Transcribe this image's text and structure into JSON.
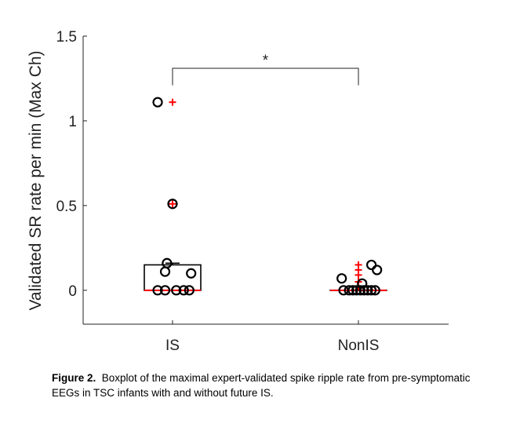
{
  "chart_data": {
    "type": "box",
    "title": "",
    "xlabel": "",
    "ylabel": "Validated SR rate per min (Max Ch)",
    "ylim": [
      -0.2,
      1.5
    ],
    "yticks": [
      {
        "value": 0,
        "label": "0"
      },
      {
        "value": 0.5,
        "label": "0.5"
      },
      {
        "value": 1,
        "label": "1"
      },
      {
        "value": 1.5,
        "label": "1.5"
      }
    ],
    "categories": [
      "IS",
      "NonIS"
    ],
    "groups": [
      {
        "name": "IS",
        "box": {
          "q1": 0,
          "median": 0,
          "q3": 0.15,
          "whisker_low": 0,
          "whisker_high": 0.16
        },
        "outliers": [
          0.51,
          1.11
        ],
        "points": [
          {
            "dx": -0.08,
            "y": 1.11
          },
          {
            "dx": 0.0,
            "y": 0.51
          },
          {
            "dx": -0.03,
            "y": 0.16
          },
          {
            "dx": -0.04,
            "y": 0.11
          },
          {
            "dx": 0.1,
            "y": 0.1
          },
          {
            "dx": -0.08,
            "y": 0.0
          },
          {
            "dx": -0.04,
            "y": 0.0
          },
          {
            "dx": 0.02,
            "y": 0.0
          },
          {
            "dx": 0.06,
            "y": 0.0
          },
          {
            "dx": 0.09,
            "y": 0.0
          }
        ]
      },
      {
        "name": "NonIS",
        "box": {
          "q1": 0,
          "median": 0,
          "q3": 0,
          "whisker_low": 0,
          "whisker_high": 0
        },
        "outliers": [
          0.02,
          0.05,
          0.09,
          0.12,
          0.15
        ],
        "points": [
          {
            "dx": 0.07,
            "y": 0.15
          },
          {
            "dx": 0.1,
            "y": 0.12
          },
          {
            "dx": -0.09,
            "y": 0.07
          },
          {
            "dx": 0.02,
            "y": 0.04
          },
          {
            "dx": -0.08,
            "y": 0.0
          },
          {
            "dx": -0.05,
            "y": 0.0
          },
          {
            "dx": -0.03,
            "y": 0.0
          },
          {
            "dx": -0.01,
            "y": 0.0
          },
          {
            "dx": 0.01,
            "y": 0.0
          },
          {
            "dx": 0.03,
            "y": 0.0
          },
          {
            "dx": 0.05,
            "y": 0.0
          },
          {
            "dx": 0.07,
            "y": 0.0
          },
          {
            "dx": 0.09,
            "y": 0.0
          }
        ]
      }
    ],
    "significance": {
      "from": "IS",
      "to": "NonIS",
      "y": 1.31,
      "drop": 0.1,
      "label": "*"
    },
    "colors": {
      "box": "#000000",
      "median": "#ff0000",
      "outlier": "#ff0000",
      "points": "#000000"
    }
  },
  "caption": {
    "label": "Figure 2.",
    "text": "Boxplot of the maximal expert-validated spike ripple rate from pre-symptomatic EEGs in TSC infants with and without future IS."
  }
}
